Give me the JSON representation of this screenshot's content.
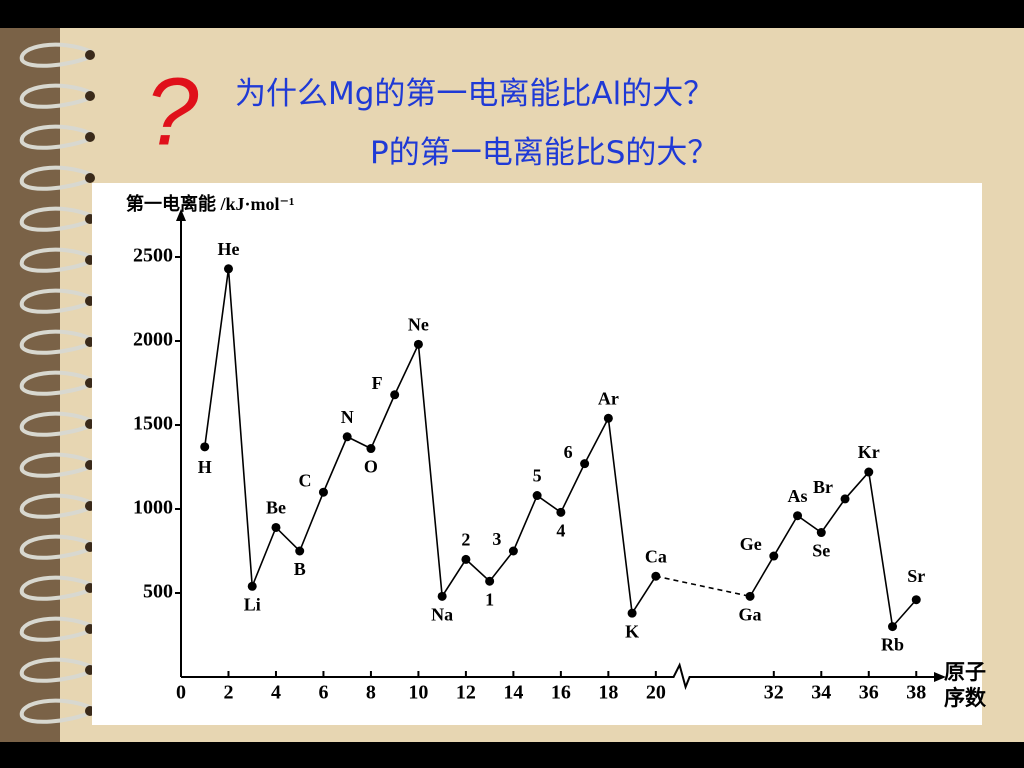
{
  "slide": {
    "mark": "?",
    "title_lines": [
      "为什么Mg的第一电离能比Al的大？",
      "P的第一电离能比S的大？"
    ]
  },
  "chart_data": {
    "type": "line",
    "y_label": "第一电离能 /kJ·mol⁻¹",
    "x_label": "原子序数",
    "x": [
      1,
      2,
      3,
      4,
      5,
      6,
      7,
      8,
      9,
      10,
      11,
      12,
      13,
      14,
      15,
      16,
      17,
      18,
      19,
      20,
      31,
      32,
      33,
      34,
      35,
      36,
      37,
      38
    ],
    "values": [
      1370,
      2430,
      540,
      890,
      750,
      1100,
      1430,
      1360,
      1680,
      1980,
      480,
      700,
      570,
      750,
      1080,
      980,
      1270,
      1540,
      380,
      600,
      480,
      720,
      960,
      860,
      1060,
      1220,
      300,
      460
    ],
    "point_labels": [
      "H",
      "He",
      "Li",
      "Be",
      "B",
      "C",
      "N",
      "O",
      "F",
      "Ne",
      "Na",
      "2",
      "1",
      "3",
      "5",
      "4",
      "6",
      "Ar",
      "K",
      "Ca",
      "Ga",
      "Ge",
      "As",
      "Se",
      "Br",
      "Kr",
      "Rb",
      "Sr"
    ],
    "color": "#000000",
    "xlim": [
      0,
      39
    ],
    "xbreak": [
      21,
      29
    ],
    "xticks": [
      0,
      2,
      4,
      6,
      8,
      10,
      12,
      14,
      16,
      18,
      20,
      32,
      34,
      36,
      38
    ],
    "ylim": [
      0,
      2750
    ],
    "yticks": [
      500,
      1000,
      1500,
      2000,
      2500
    ]
  }
}
